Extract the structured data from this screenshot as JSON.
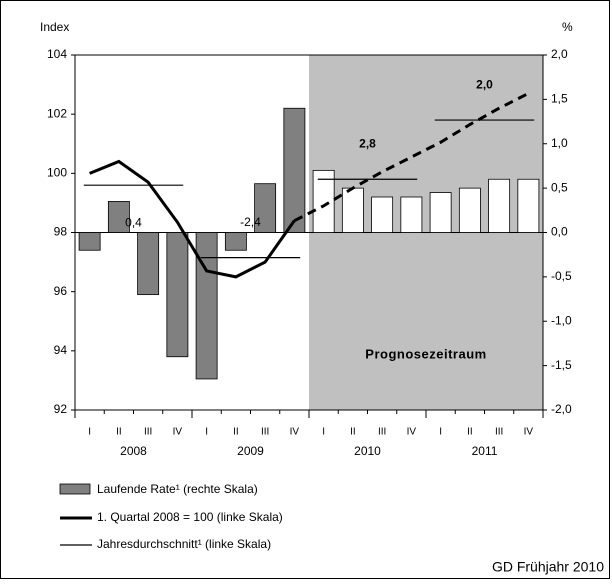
{
  "chart_data": {
    "type": "bar",
    "categories": [
      "I",
      "II",
      "III",
      "IV",
      "I",
      "II",
      "III",
      "IV",
      "I",
      "II",
      "III",
      "IV",
      "I",
      "II",
      "III",
      "IV"
    ],
    "years": [
      "2008",
      "2009",
      "2010",
      "2011"
    ],
    "ylabel": "Index",
    "y2label": "%",
    "ylim": [
      92,
      104
    ],
    "yticks": [
      92,
      94,
      96,
      98,
      100,
      102,
      104
    ],
    "y2lim": [
      -2,
      2
    ],
    "y2ticks": [
      {
        "value": -2,
        "label": "-2,0"
      },
      {
        "value": -1.5,
        "label": "-1,5"
      },
      {
        "value": -1,
        "label": "-1,0"
      },
      {
        "value": -0.5,
        "label": "-0,5"
      },
      {
        "value": 0,
        "label": "0,0"
      },
      {
        "value": 0.5,
        "label": "0,5"
      },
      {
        "value": 1,
        "label": "1,0"
      },
      {
        "value": 1.5,
        "label": "1,5"
      },
      {
        "value": 2,
        "label": "2,0"
      }
    ],
    "series": [
      {
        "name": "Laufende Rate¹ (rechte Skala)",
        "type": "bar",
        "axis": "y2",
        "color": "#808080",
        "forecast_color": "#ffffff",
        "values": [
          -0.2,
          0.35,
          -0.7,
          -1.4,
          -1.65,
          -0.2,
          0.55,
          1.4,
          0.7,
          0.5,
          0.4,
          0.4,
          0.45,
          0.5,
          0.6,
          0.6
        ]
      },
      {
        "name": "1. Quartal 2008 = 100 (linke Skala)",
        "type": "line",
        "color": "#000000",
        "values": [
          100.0,
          100.4,
          99.7,
          98.35,
          96.7,
          96.5,
          97.0,
          98.4,
          98.9,
          99.5,
          100.05,
          100.55,
          101.05,
          101.65,
          102.2,
          102.7
        ]
      }
    ],
    "annual_average": {
      "name": "Jahresdurchschnitt¹ (linke Skala)",
      "color": "#000000",
      "values": [
        99.6,
        97.15,
        99.8,
        101.8
      ],
      "annotations": [
        "0,4",
        "-2,4",
        "2,8",
        "2,0"
      ]
    },
    "forecast": {
      "label": "Prognosezeitraum",
      "start": 8,
      "color": "#c0c0c0"
    },
    "source": "GD Frühjahr 2010"
  }
}
